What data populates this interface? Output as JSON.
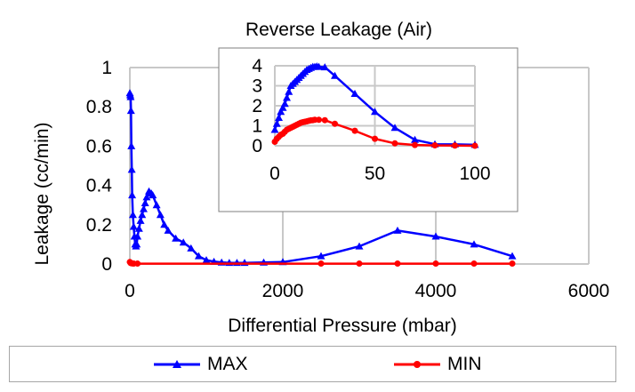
{
  "chart_data": [
    {
      "type": "line",
      "title": "",
      "xlabel": "Differential Pressure (mbar)",
      "ylabel": "Leakage (cc/min)",
      "xlim": [
        0,
        6000
      ],
      "ylim": [
        0,
        1
      ],
      "xticks": [
        "0",
        "2000",
        "4000",
        "6000"
      ],
      "yticks": [
        "0",
        "0.2",
        "0.4",
        "0.6",
        "0.8",
        "1"
      ],
      "grid": "vertical",
      "legend": "bottom",
      "series": [
        {
          "name": "MAX",
          "color": "#0000ff",
          "marker": "triangle",
          "x": [
            0,
            5,
            10,
            15,
            20,
            25,
            30,
            40,
            50,
            60,
            70,
            80,
            90,
            100,
            120,
            140,
            160,
            180,
            200,
            220,
            250,
            280,
            300,
            350,
            400,
            450,
            500,
            600,
            700,
            800,
            900,
            1000,
            1100,
            1200,
            1300,
            1400,
            1500,
            1750,
            2000,
            2500,
            3000,
            3500,
            4000,
            4500,
            5000
          ],
          "y": [
            0.87,
            0.86,
            0.85,
            0.78,
            0.6,
            0.48,
            0.35,
            0.25,
            0.19,
            0.14,
            0.1,
            0.09,
            0.1,
            0.14,
            0.18,
            0.22,
            0.25,
            0.28,
            0.31,
            0.34,
            0.37,
            0.36,
            0.35,
            0.3,
            0.25,
            0.2,
            0.17,
            0.13,
            0.11,
            0.08,
            0.04,
            0.02,
            0.012,
            0.008,
            0.006,
            0.006,
            0.006,
            0.008,
            0.01,
            0.04,
            0.09,
            0.17,
            0.14,
            0.1,
            0.04
          ]
        },
        {
          "name": "MIN",
          "color": "#ff0000",
          "marker": "circle",
          "x": [
            0,
            10,
            20,
            30,
            50,
            100,
            2500,
            3000,
            3500,
            4000,
            4500,
            5000
          ],
          "y": [
            0.01,
            0.005,
            0.004,
            0.003,
            0.002,
            0.002,
            0.002,
            0.002,
            0.002,
            0.002,
            0.002,
            0.002
          ]
        }
      ]
    },
    {
      "type": "line",
      "title": "Reverse Leakage (Air)",
      "xlabel": "",
      "ylabel": "",
      "xlim": [
        0,
        100
      ],
      "ylim": [
        0,
        4
      ],
      "xticks": [
        "0",
        "50",
        "100"
      ],
      "yticks": [
        "0",
        "1",
        "2",
        "3",
        "4"
      ],
      "grid": "both",
      "series": [
        {
          "name": "MAX",
          "color": "#0000ff",
          "marker": "triangle",
          "x": [
            0,
            1,
            2,
            3,
            4,
            5,
            6,
            7,
            8,
            9,
            10,
            11,
            12,
            13,
            14,
            15,
            16,
            17,
            18,
            19,
            20,
            21,
            22,
            25,
            30,
            40,
            50,
            60,
            70,
            80,
            90,
            100
          ],
          "y": [
            0.8,
            1.1,
            1.4,
            1.7,
            1.9,
            2.1,
            2.4,
            2.7,
            3.0,
            3.1,
            3.2,
            3.3,
            3.4,
            3.5,
            3.6,
            3.7,
            3.8,
            3.85,
            3.9,
            3.95,
            3.95,
            3.97,
            3.95,
            3.93,
            3.5,
            2.6,
            1.7,
            0.9,
            0.3,
            0.08,
            0.07,
            0.05
          ]
        },
        {
          "name": "MIN",
          "color": "#ff0000",
          "marker": "circle",
          "x": [
            0,
            1,
            2,
            3,
            4,
            5,
            6,
            7,
            8,
            9,
            10,
            11,
            12,
            13,
            14,
            15,
            16,
            17,
            18,
            19,
            20,
            22,
            25,
            30,
            40,
            50,
            60,
            70,
            80,
            90,
            100
          ],
          "y": [
            0.2,
            0.35,
            0.45,
            0.55,
            0.6,
            0.7,
            0.8,
            0.85,
            0.9,
            0.95,
            1.0,
            1.05,
            1.1,
            1.15,
            1.18,
            1.2,
            1.22,
            1.25,
            1.27,
            1.28,
            1.3,
            1.3,
            1.28,
            1.1,
            0.75,
            0.35,
            0.12,
            0.04,
            0.02,
            0.01,
            0.0
          ]
        }
      ]
    }
  ]
}
